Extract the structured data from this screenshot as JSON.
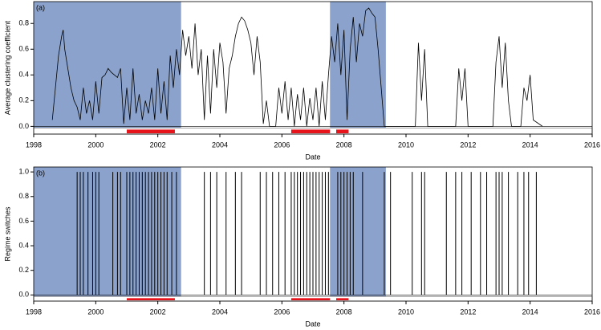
{
  "chart_data": [
    {
      "type": "line",
      "panel_label": "(a)",
      "y_label": "Average clustering coefficient",
      "x_label": "Date",
      "xlim": [
        1998,
        2016
      ],
      "xticks": [
        1998,
        2000,
        2002,
        2004,
        2006,
        2008,
        2010,
        2012,
        2014,
        2016
      ],
      "ylim": [
        -0.06,
        0.97
      ],
      "yticks": [
        {
          "value": 0,
          "label": "0.0"
        },
        0.2,
        0.4,
        0.6,
        0.8
      ],
      "shaded": [
        [
          1998,
          2002.75
        ],
        [
          2007.55,
          2009.35
        ]
      ],
      "shade_color": "#8aa2cc",
      "red_intervals": [
        [
          2001.0,
          2002.55
        ],
        [
          2006.3,
          2007.55
        ],
        [
          2007.75,
          2008.15
        ]
      ],
      "red_color": "#e8141c",
      "color": "#000000",
      "x": [
        1998.6,
        1998.7,
        1998.8,
        1998.9,
        1998.95,
        1999.0,
        1999.1,
        1999.2,
        1999.3,
        1999.4,
        1999.5,
        1999.6,
        1999.7,
        1999.8,
        1999.9,
        2000.0,
        2000.1,
        2000.2,
        2000.3,
        2000.4,
        2000.5,
        2000.6,
        2000.7,
        2000.8,
        2000.9,
        2001.0,
        2001.1,
        2001.2,
        2001.3,
        2001.4,
        2001.5,
        2001.6,
        2001.7,
        2001.8,
        2001.9,
        2002.0,
        2002.1,
        2002.2,
        2002.3,
        2002.4,
        2002.5,
        2002.6,
        2002.7,
        2002.8,
        2002.9,
        2003.0,
        2003.1,
        2003.2,
        2003.3,
        2003.4,
        2003.5,
        2003.6,
        2003.7,
        2003.8,
        2003.9,
        2004.0,
        2004.1,
        2004.2,
        2004.3,
        2004.4,
        2004.5,
        2004.6,
        2004.7,
        2004.8,
        2004.9,
        2005.0,
        2005.1,
        2005.2,
        2005.3,
        2005.4,
        2005.5,
        2005.6,
        2005.8,
        2005.9,
        2006.0,
        2006.1,
        2006.2,
        2006.3,
        2006.4,
        2006.5,
        2006.6,
        2006.7,
        2006.8,
        2006.9,
        2007.0,
        2007.1,
        2007.2,
        2007.3,
        2007.4,
        2007.5,
        2007.6,
        2007.7,
        2007.8,
        2007.9,
        2008.0,
        2008.1,
        2008.2,
        2008.3,
        2008.4,
        2008.5,
        2008.6,
        2008.7,
        2008.8,
        2008.9,
        2009.0,
        2009.1,
        2009.2,
        2009.3,
        2010.3,
        2010.4,
        2010.5,
        2010.6,
        2010.7,
        2011.6,
        2011.7,
        2011.8,
        2011.9,
        2012.0,
        2012.8,
        2012.9,
        2013.0,
        2013.1,
        2013.2,
        2013.3,
        2013.4,
        2013.7,
        2013.8,
        2013.9,
        2014.0,
        2014.1,
        2014.4
      ],
      "values": [
        0.05,
        0.3,
        0.55,
        0.7,
        0.75,
        0.6,
        0.45,
        0.3,
        0.2,
        0.15,
        0.05,
        0.3,
        0.1,
        0.2,
        0.05,
        0.35,
        0.1,
        0.38,
        0.4,
        0.45,
        0.42,
        0.4,
        0.38,
        0.45,
        0.02,
        0.3,
        0.05,
        0.45,
        0.1,
        0.25,
        0.05,
        0.2,
        0.1,
        0.3,
        0.05,
        0.45,
        0.1,
        0.35,
        0.05,
        0.55,
        0.3,
        0.6,
        0.4,
        0.75,
        0.55,
        0.7,
        0.45,
        0.8,
        0.4,
        0.6,
        0.05,
        0.55,
        0.1,
        0.6,
        0.3,
        0.65,
        0.5,
        0.1,
        0.45,
        0.55,
        0.7,
        0.8,
        0.85,
        0.82,
        0.75,
        0.65,
        0.4,
        0.7,
        0.5,
        0.02,
        0.2,
        0.0,
        0.0,
        0.3,
        0.1,
        0.35,
        0.05,
        0.3,
        0.0,
        0.25,
        0.05,
        0.3,
        0.0,
        0.22,
        0.05,
        0.3,
        0.0,
        0.35,
        0.05,
        0.4,
        0.7,
        0.5,
        0.8,
        0.4,
        0.75,
        0.05,
        0.6,
        0.85,
        0.5,
        0.8,
        0.7,
        0.9,
        0.92,
        0.88,
        0.85,
        0.6,
        0.3,
        0.0,
        0.0,
        0.65,
        0.2,
        0.6,
        0.0,
        0.0,
        0.45,
        0.2,
        0.45,
        0.0,
        0.0,
        0.5,
        0.7,
        0.3,
        0.65,
        0.2,
        0.0,
        0.0,
        0.3,
        0.2,
        0.4,
        0.05,
        0.0
      ]
    },
    {
      "type": "spike",
      "panel_label": "(b)",
      "y_label": "Regime switches",
      "x_label": "Date",
      "xlim": [
        1998,
        2016
      ],
      "xticks": [
        1998,
        2000,
        2002,
        2004,
        2006,
        2008,
        2010,
        2012,
        2014,
        2016
      ],
      "ylim": [
        -0.05,
        1.04
      ],
      "yticks": [
        {
          "value": 0,
          "label": "0.0"
        },
        0.2,
        0.4,
        0.6,
        0.8,
        {
          "value": 1,
          "label": "1.0"
        }
      ],
      "shaded": [
        [
          1998,
          2002.75
        ],
        [
          2007.55,
          2009.35
        ]
      ],
      "shade_color": "#8aa2cc",
      "red_intervals": [
        [
          2001.0,
          2002.55
        ],
        [
          2006.3,
          2007.55
        ],
        [
          2007.75,
          2008.15
        ]
      ],
      "red_color": "#e8141c",
      "color": "#000000",
      "x": [
        1999.4,
        1999.5,
        1999.6,
        1999.75,
        1999.9,
        2000.0,
        2000.1,
        2000.55,
        2000.7,
        2000.8,
        2001.0,
        2001.1,
        2001.2,
        2001.3,
        2001.4,
        2001.5,
        2001.6,
        2001.7,
        2001.8,
        2001.9,
        2002.0,
        2002.1,
        2002.2,
        2002.3,
        2002.45,
        2002.6,
        2003.5,
        2003.7,
        2003.9,
        2004.2,
        2004.5,
        2004.7,
        2005.3,
        2005.5,
        2005.7,
        2005.9,
        2006.1,
        2006.3,
        2006.4,
        2006.5,
        2006.6,
        2006.7,
        2006.8,
        2006.9,
        2007.0,
        2007.1,
        2007.2,
        2007.3,
        2007.4,
        2007.5,
        2007.8,
        2007.9,
        2008.0,
        2008.1,
        2008.2,
        2008.3,
        2008.6,
        2009.3,
        2009.5,
        2010.2,
        2010.5,
        2010.6,
        2011.3,
        2011.6,
        2011.8,
        2012.1,
        2012.4,
        2012.6,
        2012.9,
        2013.0,
        2013.1,
        2013.3,
        2013.6,
        2013.8,
        2013.95,
        2014.2
      ],
      "values": [
        1,
        1,
        1,
        1,
        1,
        1,
        1,
        1,
        1,
        1,
        1,
        1,
        1,
        1,
        1,
        1,
        1,
        1,
        1,
        1,
        1,
        1,
        1,
        1,
        1,
        1,
        1,
        1,
        1,
        1,
        1,
        1,
        1,
        1,
        1,
        1,
        1,
        1,
        1,
        1,
        1,
        1,
        1,
        1,
        1,
        1,
        1,
        1,
        1,
        1,
        1,
        1,
        1,
        1,
        1,
        1,
        1,
        1,
        1,
        1,
        1,
        1,
        1,
        1,
        1,
        1,
        1,
        1,
        1,
        1,
        1,
        1,
        1,
        1,
        1,
        1
      ]
    }
  ]
}
